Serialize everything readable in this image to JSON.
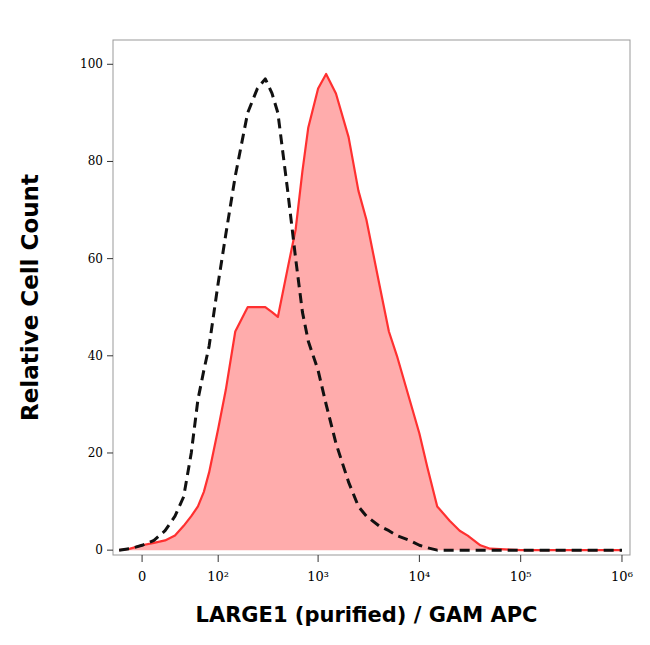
{
  "chart_data": {
    "type": "histogram_overlay",
    "y_label": "Relative Cell Count",
    "x_label": "LARGE1 (purified) / GAM APC",
    "x": [
      -20,
      -10,
      0,
      10,
      20,
      30,
      40,
      50,
      60,
      70,
      80,
      100,
      120,
      150,
      200,
      250,
      300,
      350,
      400,
      500,
      600,
      700,
      800,
      1000,
      1200,
      1500,
      2000,
      2500,
      3000,
      4000,
      5000,
      6000,
      8000,
      10000,
      12000,
      15000,
      20000,
      25000,
      30000,
      40000,
      50000,
      100000,
      1000000
    ],
    "series": [
      {
        "type": "line",
        "color": "#111111",
        "line_style": "dashed",
        "values": [
          0,
          0.3,
          1,
          2,
          4,
          7,
          11,
          20,
          31,
          37,
          42,
          55,
          65,
          77,
          90,
          95,
          97,
          94,
          90,
          74,
          60,
          49,
          43,
          37,
          30,
          22,
          14,
          9,
          7,
          5,
          4,
          3,
          2,
          1,
          0.5,
          0,
          0,
          0,
          0,
          0,
          0,
          0,
          0
        ]
      },
      {
        "type": "area",
        "color": "#ff3030",
        "line_style": "solid",
        "values": [
          0,
          0.3,
          1,
          1.5,
          2,
          3,
          5,
          7,
          9,
          12,
          16,
          25,
          33,
          45,
          50,
          50,
          50,
          49,
          48,
          58,
          66,
          78,
          87,
          95,
          98,
          94,
          85,
          74,
          68,
          55,
          45,
          40,
          31,
          24,
          17,
          9,
          6,
          4,
          3,
          1,
          0.3,
          0,
          0
        ]
      }
    ],
    "xlim": [
      -26,
      1200000
    ],
    "xticks": [
      0,
      {
        "value": 100,
        "label": "10²"
      },
      {
        "value": 1000,
        "label": "10³"
      },
      {
        "value": 10000,
        "label": "10⁴"
      },
      {
        "value": 100000,
        "label": "10⁵"
      },
      {
        "value": 1000000,
        "label": "10⁶"
      }
    ],
    "ylim": [
      -1,
      105
    ],
    "yticks": [
      0,
      20,
      40,
      60,
      80,
      100
    ],
    "grid": false
  }
}
